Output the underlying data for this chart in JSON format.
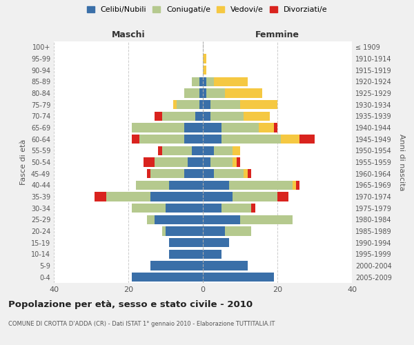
{
  "age_groups": [
    "0-4",
    "5-9",
    "10-14",
    "15-19",
    "20-24",
    "25-29",
    "30-34",
    "35-39",
    "40-44",
    "45-49",
    "50-54",
    "55-59",
    "60-64",
    "65-69",
    "70-74",
    "75-79",
    "80-84",
    "85-89",
    "90-94",
    "95-99",
    "100+"
  ],
  "birth_years": [
    "2005-2009",
    "2000-2004",
    "1995-1999",
    "1990-1994",
    "1985-1989",
    "1980-1984",
    "1975-1979",
    "1970-1974",
    "1965-1969",
    "1960-1964",
    "1955-1959",
    "1950-1954",
    "1945-1949",
    "1940-1944",
    "1935-1939",
    "1930-1934",
    "1925-1929",
    "1920-1924",
    "1915-1919",
    "1910-1914",
    "≤ 1909"
  ],
  "maschi": {
    "celibi": [
      19,
      14,
      9,
      9,
      10,
      13,
      10,
      14,
      9,
      5,
      4,
      3,
      5,
      5,
      2,
      1,
      1,
      1,
      0,
      0,
      0
    ],
    "coniugati": [
      0,
      0,
      0,
      0,
      1,
      2,
      9,
      12,
      9,
      9,
      9,
      8,
      12,
      14,
      9,
      6,
      4,
      2,
      0,
      0,
      0
    ],
    "vedovi": [
      0,
      0,
      0,
      0,
      0,
      0,
      0,
      0,
      0,
      0,
      0,
      0,
      0,
      0,
      0,
      1,
      0,
      0,
      0,
      0,
      0
    ],
    "divorziati": [
      0,
      0,
      0,
      0,
      0,
      0,
      0,
      3,
      0,
      1,
      3,
      1,
      2,
      0,
      2,
      0,
      0,
      0,
      0,
      0,
      0
    ]
  },
  "femmine": {
    "nubili": [
      19,
      12,
      5,
      7,
      6,
      10,
      5,
      8,
      7,
      3,
      2,
      3,
      5,
      5,
      2,
      2,
      1,
      1,
      0,
      0,
      0
    ],
    "coniugate": [
      0,
      0,
      0,
      0,
      7,
      14,
      8,
      12,
      17,
      8,
      6,
      5,
      16,
      10,
      9,
      8,
      5,
      2,
      0,
      0,
      0
    ],
    "vedove": [
      0,
      0,
      0,
      0,
      0,
      0,
      0,
      0,
      1,
      1,
      1,
      2,
      5,
      4,
      7,
      10,
      10,
      9,
      1,
      1,
      0
    ],
    "divorziate": [
      0,
      0,
      0,
      0,
      0,
      0,
      1,
      3,
      1,
      1,
      1,
      0,
      4,
      1,
      0,
      0,
      0,
      0,
      0,
      0,
      0
    ]
  },
  "colors": {
    "celibi_nubili": "#3a6fa8",
    "coniugati": "#b5c98e",
    "vedovi": "#f5c842",
    "divorziati": "#d9231e"
  },
  "xlim": 40,
  "title": "Popolazione per età, sesso e stato civile - 2010",
  "subtitle": "COMUNE DI CROTTA D’ADDA (CR) - Dati ISTAT 1° gennaio 2010 - Elaborazione TUTTITALIA.IT",
  "ylabel_left": "Fasce di età",
  "ylabel_right": "Anni di nascita",
  "xlabel_maschi": "Maschi",
  "xlabel_femmine": "Femmine",
  "legend_labels": [
    "Celibi/Nubili",
    "Coniugati/e",
    "Vedovi/e",
    "Divorziati/e"
  ],
  "bg_color": "#f0f0f0",
  "plot_bg": "#ffffff"
}
